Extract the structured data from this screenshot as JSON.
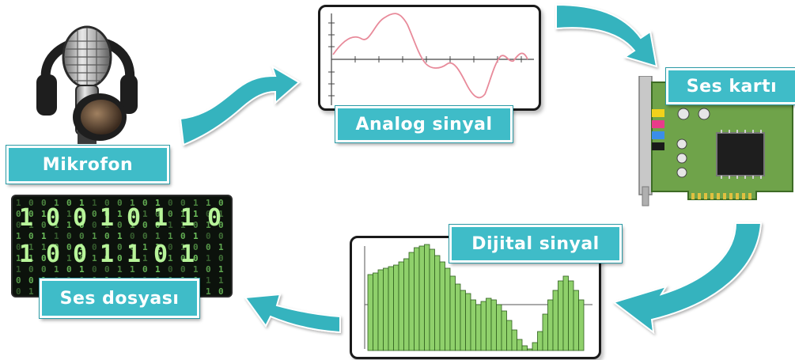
{
  "labels": {
    "microphone": "Mikrofon",
    "analog": "Analog sinyal",
    "soundcard": "Ses kartı",
    "digital": "Dijital sinyal",
    "soundfile": "Ses dosyası"
  },
  "colors": {
    "accent": "#3fbcc8",
    "arrow": "#35b3be",
    "analog_wave": "#e88a9a",
    "digital_bars": "#8fd06b",
    "pcb": "#6fa34a",
    "matrix_text": "#7fe06a"
  },
  "icons": {
    "microphone": "microphone-headphones-icon",
    "soundcard": "sound-card-icon",
    "soundfile": "binary-matrix-icon"
  },
  "matrix": {
    "columns": [
      "1",
      "0",
      "0",
      "1",
      "0",
      "1",
      "1",
      "0",
      "0",
      "1",
      "0",
      "1",
      "0",
      "0",
      "1",
      "1",
      "0"
    ],
    "big_digits": [
      "1",
      "0",
      "0",
      "1",
      "0",
      "1",
      "1",
      "0",
      "1",
      "0",
      "0",
      "1",
      "1",
      "0",
      "1"
    ]
  }
}
